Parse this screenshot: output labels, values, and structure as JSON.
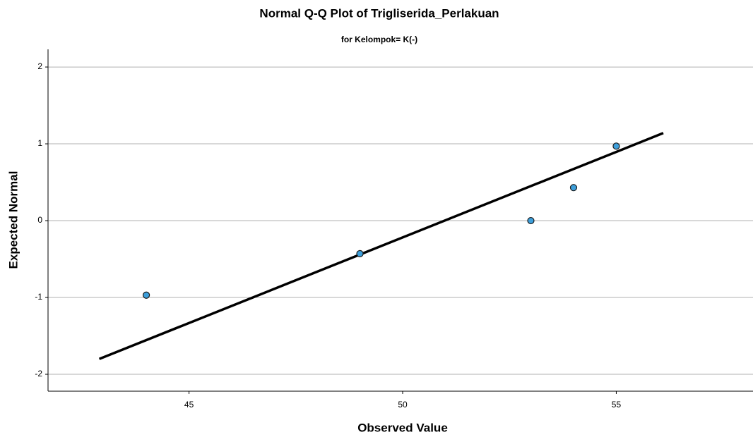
{
  "chart_data": {
    "type": "scatter",
    "title": "Normal Q-Q Plot of Trigliserida_Perlakuan",
    "subtitle": "for Kelompok= K(-)",
    "x_label": "Observed Value",
    "y_label": "Expected Normal",
    "x": [
      44,
      49,
      53,
      54,
      55
    ],
    "series": [
      {
        "color": "#3d9fdb",
        "values": [
          -0.97,
          -0.43,
          0,
          0.43,
          0.97
        ]
      }
    ],
    "reference_line": {
      "x": [
        42.9,
        56.1
      ],
      "y": [
        -1.8,
        1.14
      ],
      "color": "#000000"
    },
    "xlim": [
      41.7,
      58.2
    ],
    "xticks": [
      45,
      50,
      55
    ],
    "ylim": [
      -2.22,
      2.23
    ],
    "yticks": [
      -2,
      -1,
      0,
      1,
      2
    ],
    "grid": true
  }
}
